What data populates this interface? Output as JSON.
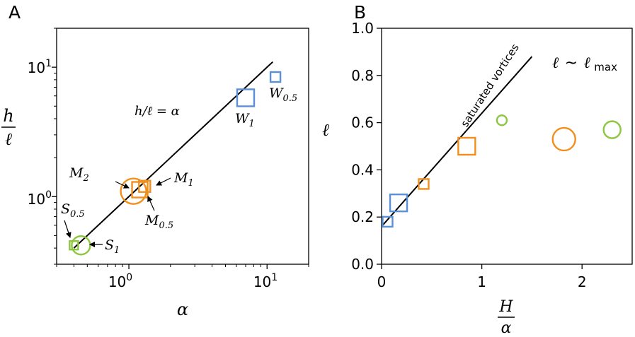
{
  "colors": {
    "W": "#5b8fd8",
    "M": "#f28e1c",
    "S": "#8dc63f",
    "line": "#000000"
  },
  "chart_data": [
    {
      "type": "scatter",
      "panel_label": "A",
      "xlabel": "α",
      "ylabel_num": "h",
      "ylabel_den": "ℓ",
      "xscale": "log",
      "yscale": "log",
      "xlim": [
        0.3,
        20
      ],
      "ylim": [
        0.3,
        20
      ],
      "xticks": [
        {
          "value": 1,
          "base": "10",
          "exp": "0"
        },
        {
          "value": 10,
          "base": "10",
          "exp": "1"
        }
      ],
      "yticks": [
        {
          "value": 1,
          "base": "10",
          "exp": "0"
        },
        {
          "value": 10,
          "base": "10",
          "exp": "1"
        }
      ],
      "line": {
        "label": "h/ℓ = α",
        "x": [
          0.4,
          11
        ],
        "y": [
          0.4,
          11
        ]
      },
      "points": [
        {
          "id": "W1",
          "label": "W",
          "sub": "1",
          "x": 7.0,
          "y": 5.8,
          "shape": "square",
          "group": "W",
          "size": 24
        },
        {
          "id": "W05",
          "label": "W",
          "sub": "0.5",
          "x": 11.5,
          "y": 8.4,
          "shape": "square",
          "group": "W",
          "size": 14
        },
        {
          "id": "M1",
          "label": "M",
          "sub": "1",
          "x": 1.3,
          "y": 1.2,
          "shape": "square",
          "group": "M",
          "size": 16
        },
        {
          "id": "M05",
          "label": "M",
          "sub": "0.5",
          "x": 1.2,
          "y": 1.13,
          "shape": "square",
          "group": "M",
          "size": 22
        },
        {
          "id": "M2",
          "label": "M",
          "sub": "2",
          "x": 1.08,
          "y": 1.1,
          "shape": "circle",
          "group": "M",
          "size": 36
        },
        {
          "id": "S05",
          "label": "S",
          "sub": "0.5",
          "x": 0.4,
          "y": 0.42,
          "shape": "square",
          "group": "S",
          "size": 12
        },
        {
          "id": "S1",
          "label": "S",
          "sub": "1",
          "x": 0.45,
          "y": 0.42,
          "shape": "circle",
          "group": "S",
          "size": 26
        }
      ]
    },
    {
      "type": "scatter",
      "panel_label": "B",
      "xlabel_num": "H",
      "xlabel_den": "α",
      "ylabel": "ℓ",
      "xlim": [
        0,
        2.5
      ],
      "ylim": [
        0.0,
        1.0
      ],
      "xticks": [
        0,
        1,
        2
      ],
      "yticks": [
        "0.0",
        "0.2",
        "0.4",
        "0.6",
        "0.8",
        "1.0"
      ],
      "line": {
        "label": "saturated vortices",
        "x": [
          0.0,
          1.5
        ],
        "y": [
          0.16,
          0.88
        ]
      },
      "annotation": {
        "lhs": "ℓ",
        "op": "~",
        "rhs": "ℓ",
        "rhs_sub": "max"
      },
      "points": [
        {
          "x": 0.06,
          "y": 0.18,
          "shape": "square",
          "group": "W",
          "size": 14
        },
        {
          "x": 0.17,
          "y": 0.26,
          "shape": "square",
          "group": "W",
          "size": 24
        },
        {
          "x": 0.42,
          "y": 0.34,
          "shape": "square",
          "group": "M",
          "size": 14
        },
        {
          "x": 0.85,
          "y": 0.5,
          "shape": "square",
          "group": "M",
          "size": 24
        },
        {
          "x": 1.2,
          "y": 0.61,
          "shape": "circle",
          "group": "S",
          "size": 14
        },
        {
          "x": 1.82,
          "y": 0.53,
          "shape": "circle",
          "group": "M",
          "size": 32
        },
        {
          "x": 2.3,
          "y": 0.57,
          "shape": "circle",
          "group": "S",
          "size": 24
        }
      ]
    }
  ]
}
